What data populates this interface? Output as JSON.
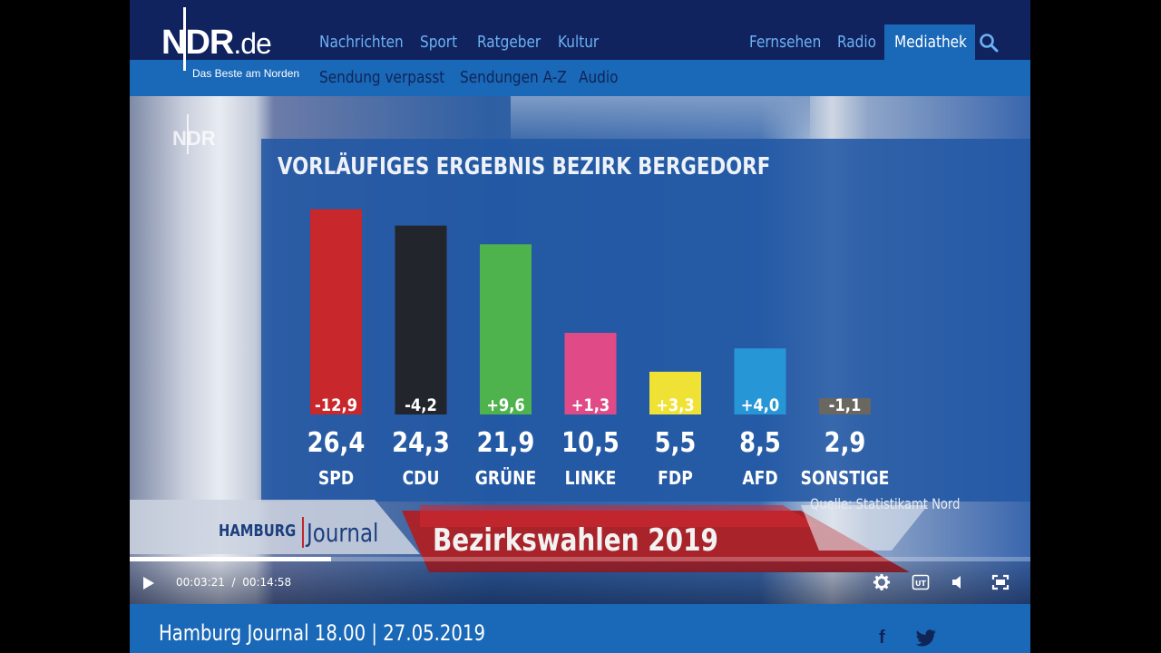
{
  "header": {
    "logo_text": "NDR",
    "logo_suffix": ".de",
    "tagline": "Das Beste am Norden",
    "nav_left": [
      "Nachrichten",
      "Sport",
      "Ratgeber",
      "Kultur"
    ],
    "nav_right": [
      "Fernsehen",
      "Radio"
    ],
    "nav_active": "Mediathek",
    "subnav": [
      "Sendung verpasst",
      "Sendungen A-Z",
      "Audio"
    ],
    "search_icon": "search-icon"
  },
  "video": {
    "watermark": "NDR",
    "lower_third": {
      "brand_a": "HAMBURG",
      "brand_b": "Journal",
      "title": "Bezirkswahlen 2019"
    },
    "source": "Quelle: Statistikamt Nord",
    "player": {
      "current_time": "00:03:21",
      "separator": "/",
      "duration": "00:14:58",
      "progress": 0.224
    }
  },
  "chart_data": {
    "type": "bar",
    "title": "VORLÄUFIGES ERGEBNIS BEZIRK BERGEDORF",
    "categories": [
      "SPD",
      "CDU",
      "GRÜNE",
      "LINKE",
      "FDP",
      "AFD",
      "SONSTIGE"
    ],
    "values": [
      26.4,
      24.3,
      21.9,
      10.5,
      5.5,
      8.5,
      2.9
    ],
    "value_labels": [
      "26,4",
      "24,3",
      "21,9",
      "10,5",
      "5,5",
      "8,5",
      "2,9"
    ],
    "change_labels": [
      "-12,9",
      "-4,2",
      "+9,6",
      "+1,3",
      "+3,3",
      "+4,0",
      "-1,1"
    ],
    "colors": [
      "#c8282b",
      "#22252b",
      "#4fb34d",
      "#e04a86",
      "#f0e234",
      "#2796d6",
      "#6a6660"
    ],
    "ylim": [
      0,
      28
    ]
  },
  "footer": {
    "episode": "Hamburg Journal 18.00  |  27.05.2019",
    "icons": [
      "facebook-icon",
      "twitter-icon"
    ]
  },
  "colors": {
    "header_dark": "#10235f",
    "header_blue": "#1a68b8",
    "nav_text": "#6db1f2"
  }
}
